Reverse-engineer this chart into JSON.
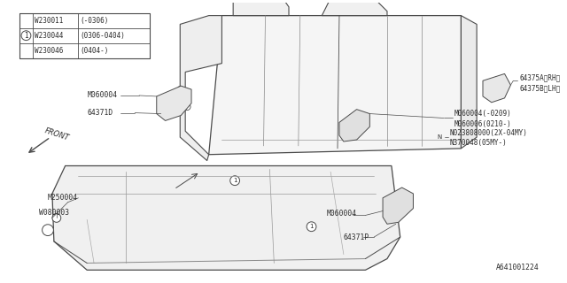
{
  "bg_color": "#ffffff",
  "line_color": "#4a4a4a",
  "text_color": "#2a2a2a",
  "footer": "A641001224",
  "table_rows": [
    [
      "",
      "W230011",
      "(-0306)"
    ],
    [
      "1",
      "W230044",
      "(0306-0404)"
    ],
    [
      "",
      "W230046",
      "(0404-)"
    ]
  ]
}
